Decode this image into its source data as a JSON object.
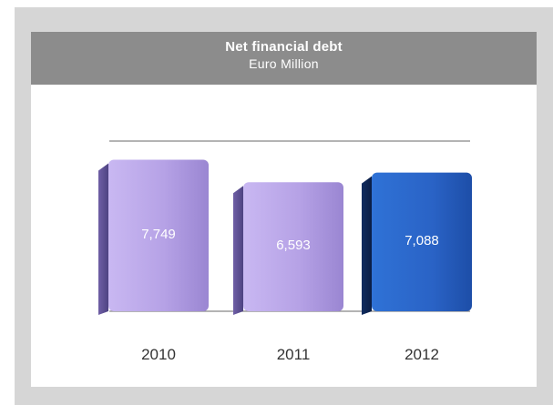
{
  "chart_data": {
    "type": "bar",
    "title": "Net financial debt",
    "subtitle": "Euro Million",
    "categories": [
      "2010",
      "2011",
      "2012"
    ],
    "values": [
      7749,
      6593,
      7088
    ],
    "value_labels": [
      "7,749",
      "6,593",
      "7,088"
    ],
    "ylim": [
      0,
      8700
    ],
    "grid": true,
    "legend": "none",
    "colors": {
      "bar_default": "#b6a2e6",
      "bar_highlight": "#2a63c6",
      "value_label": "#ffffff",
      "tick_label": "#333333",
      "gridline": "#888888",
      "header_bg": "#8c8c8c",
      "frame_bg": "#d6d6d6"
    },
    "highlight_category": "2012"
  }
}
